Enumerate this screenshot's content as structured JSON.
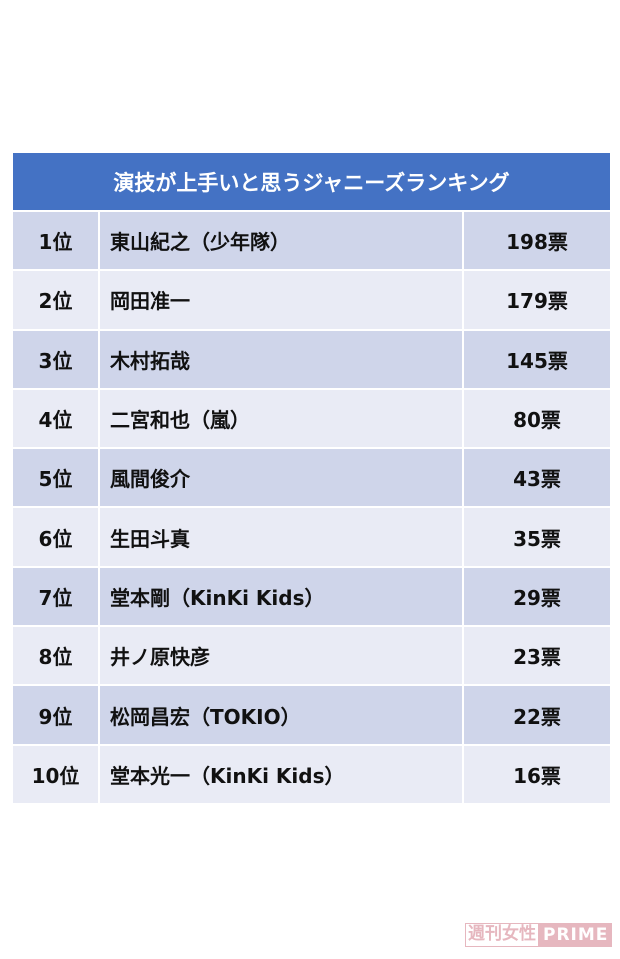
{
  "title": "演技が上手いと思うジャニーズランキング",
  "rows": [
    {
      "rank": "1位",
      "name": "東山紀之（少年隊）",
      "votes": "198票"
    },
    {
      "rank": "2位",
      "name": "岡田准一",
      "votes": "179票"
    },
    {
      "rank": "3位",
      "name": "木村拓哉",
      "votes": "145票"
    },
    {
      "rank": "4位",
      "name": "二宮和也（嵐）",
      "votes": "80票"
    },
    {
      "rank": "5位",
      "name": "風間俊介",
      "votes": "43票"
    },
    {
      "rank": "6位",
      "name": "生田斗真",
      "votes": "35票"
    },
    {
      "rank": "7位",
      "name": "堂本剛（KinKi Kids）",
      "votes": "29票"
    },
    {
      "rank": "8位",
      "name": "井ノ原快彦",
      "votes": "23票"
    },
    {
      "rank": "9位",
      "name": "松岡昌宏（TOKIO）",
      "votes": "22票"
    },
    {
      "rank": "10位",
      "name": "堂本光一（KinKi Kids）",
      "votes": "16票"
    }
  ],
  "watermark": {
    "part1": "週刊女性",
    "part2": "PRIME"
  },
  "colors": {
    "header": "#4472C4",
    "row_odd": "#CFD5EA",
    "row_even": "#E9EBF5",
    "watermark": "#E6B7BF"
  }
}
